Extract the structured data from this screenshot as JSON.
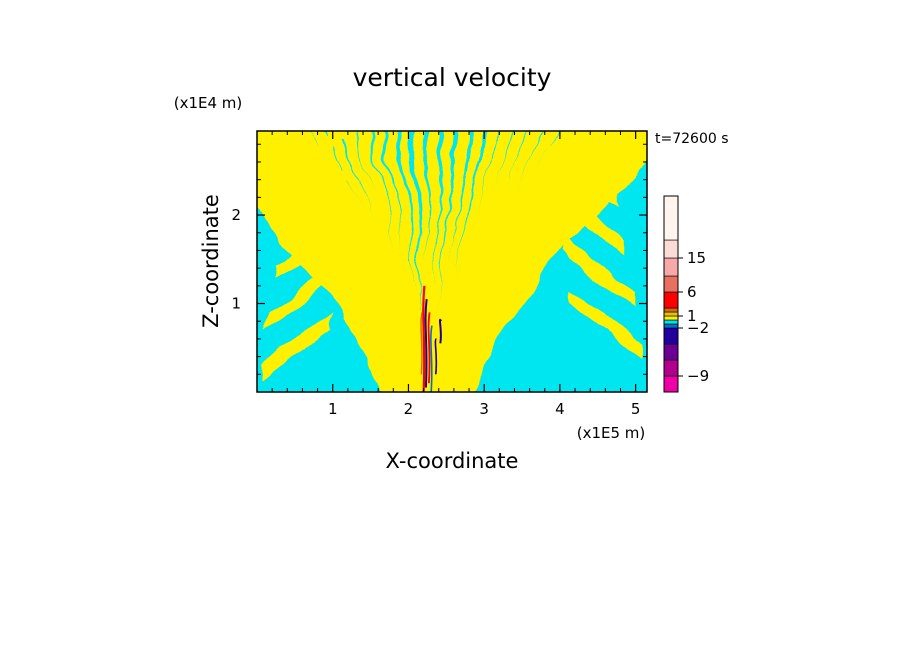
{
  "chart_data": {
    "type": "heatmap",
    "title": "vertical velocity",
    "xlabel": "X-coordinate",
    "ylabel": "Z-coordinate",
    "x_unit": "(x1E5 m)",
    "y_unit": "(x1E4 m)",
    "time_label": "t=72600 s",
    "xlim": [
      0,
      5.15
    ],
    "ylim": [
      0,
      2.95
    ],
    "x_ticks": [
      1,
      2,
      3,
      4,
      5
    ],
    "y_ticks": [
      1,
      2
    ],
    "colorbar": {
      "levels": [
        -12,
        -9,
        -6,
        -4,
        -2,
        -1,
        0,
        1,
        2,
        4,
        6,
        10,
        15,
        20,
        30
      ],
      "colors": [
        "#ee00a6",
        "#b2008e",
        "#6b0094",
        "#2200a0",
        "#0070c8",
        "#00e0ee",
        "#fff000",
        "#e8c200",
        "#d86a00",
        "#ff0000",
        "#e87060",
        "#f7a8a8",
        "#fbdcd4",
        "#fff4ee"
      ],
      "tick_labels": [
        "15",
        "6",
        "1",
        "−2",
        "−9"
      ],
      "tick_values": [
        15,
        6,
        1,
        -2,
        -9
      ]
    },
    "field_summary": "alternating positive (yellow) and negative (cyan) bands; strong updraft/downdraft core near x≈2.2–2.4 below z≈1.2"
  }
}
